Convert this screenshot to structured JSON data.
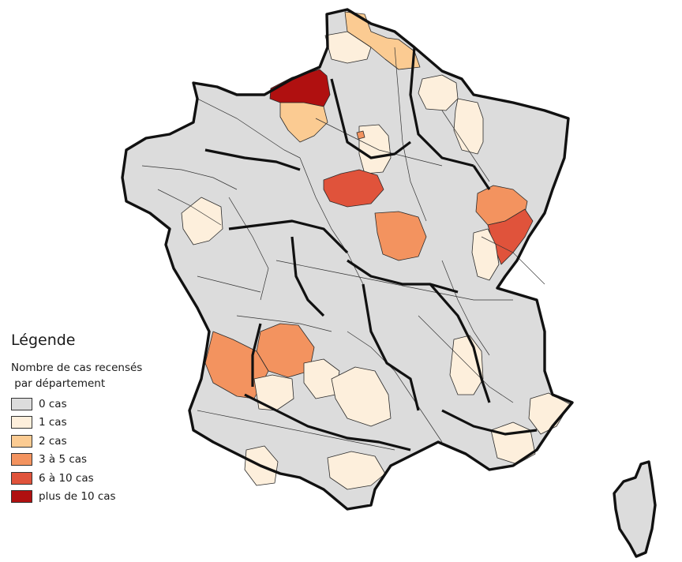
{
  "legend": {
    "title": "Légende",
    "subtitle": "Nombre de cas recensés\n par département",
    "items": [
      {
        "label": "0 cas",
        "color": "#dcdcdc"
      },
      {
        "label": "1 cas",
        "color": "#fdefdc"
      },
      {
        "label": "2 cas",
        "color": "#fbcb92"
      },
      {
        "label": "3 à 5 cas",
        "color": "#f3935f"
      },
      {
        "label": "6 à 10 cas",
        "color": "#e0533b"
      },
      {
        "label": "plus de 10 cas",
        "color": "#b01010"
      }
    ]
  },
  "highlighted_departments": [
    {
      "area": "Seine-Maritime",
      "class": "plus de 10 cas"
    },
    {
      "area": "Loiret",
      "class": "6 à 10 cas"
    },
    {
      "area": "Doubs",
      "class": "6 à 10 cas"
    },
    {
      "area": "Haute-Saône",
      "class": "3 à 5 cas"
    },
    {
      "area": "Nièvre",
      "class": "3 à 5 cas"
    },
    {
      "area": "Gironde",
      "class": "3 à 5 cas"
    },
    {
      "area": "Dordogne",
      "class": "3 à 5 cas"
    },
    {
      "area": "Eure",
      "class": "2 cas"
    },
    {
      "area": "Pas-de-Calais",
      "class": "2 cas"
    },
    {
      "area": "Nord",
      "class": "2 cas"
    },
    {
      "area": "Paris",
      "class": "3 à 5 cas"
    }
  ]
}
